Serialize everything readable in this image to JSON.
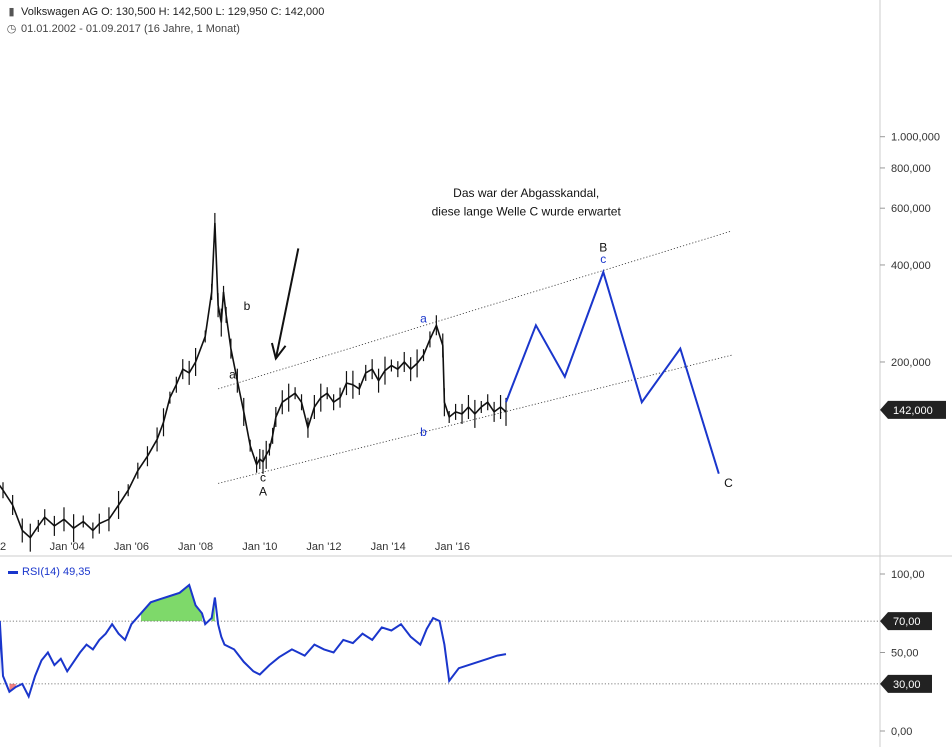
{
  "header": {
    "bars_icon": "bars-icon",
    "clock_icon": "clock-icon",
    "instrument": "Volkswagen AG",
    "open": "O: 130,500",
    "high": "H: 142,500",
    "low": "L: 129,950",
    "close": "C: 142,000",
    "range": "01.01.2002 - 01.09.2017",
    "span": "(16 Jahre, 1 Monat)"
  },
  "colors": {
    "price": "#111111",
    "projection": "#1a36cc",
    "rsi": "#1a36cc",
    "overbought_fill": "#7ed96a",
    "oversold_fill": "#f08080",
    "axis": "#cccccc",
    "badge": "#222222"
  },
  "chart_data": [
    {
      "type": "line",
      "title": "",
      "scale": "log",
      "ylim": [
        55000,
        1050000
      ],
      "x_ticks": [
        "2",
        "Jan '04",
        "Jan '06",
        "Jan '08",
        "Jan '10",
        "Jan '12",
        "Jan '14",
        "Jan '16"
      ],
      "x_tick_years": [
        2002.0,
        2004.0,
        2006.0,
        2008.0,
        2010.0,
        2012.0,
        2014.0,
        2016.0
      ],
      "y_ticks": [
        "1.000,000",
        "800,000",
        "600,000",
        "400,000",
        "200,000"
      ],
      "y_tick_values": [
        1000000,
        800000,
        600000,
        400000,
        200000
      ],
      "last_value": 142000,
      "last_label": "142,000",
      "series": [
        {
          "x": [
            2001.85,
            2002.0,
            2002.3,
            2002.6,
            2002.85,
            2003.1,
            2003.3,
            2003.6,
            2003.9,
            2004.2,
            2004.5,
            2004.8,
            2005.0,
            2005.3,
            2005.6,
            2005.9,
            2006.2,
            2006.5,
            2006.8,
            2007.0,
            2007.2,
            2007.4,
            2007.6,
            2007.8,
            2008.0,
            2008.3,
            2008.5,
            2008.6,
            2008.7,
            2008.8,
            2008.87,
            2008.95,
            2009.1,
            2009.3,
            2009.5,
            2009.7,
            2009.9,
            2010.0,
            2010.1,
            2010.2,
            2010.3,
            2010.4,
            2010.5,
            2010.7,
            2010.9,
            2011.1,
            2011.3,
            2011.5,
            2011.7,
            2011.9,
            2012.1,
            2012.3,
            2012.5,
            2012.7,
            2012.9,
            2013.1,
            2013.3,
            2013.5,
            2013.7,
            2013.9,
            2014.1,
            2014.3,
            2014.5,
            2014.7,
            2014.9,
            2015.1,
            2015.3,
            2015.5,
            2015.7,
            2015.75,
            2015.9,
            2016.1,
            2016.3,
            2016.5,
            2016.7,
            2016.9,
            2017.1,
            2017.3,
            2017.5,
            2017.67
          ],
          "y": [
            84000,
            80000,
            72000,
            60000,
            57000,
            62000,
            66000,
            62000,
            65000,
            61000,
            64000,
            60000,
            63000,
            65000,
            72000,
            80000,
            92000,
            102000,
            115000,
            130000,
            155000,
            170000,
            190000,
            185000,
            200000,
            240000,
            330000,
            540000,
            300000,
            265000,
            330000,
            280000,
            220000,
            175000,
            140000,
            110000,
            96000,
            100000,
            98000,
            103000,
            107000,
            118000,
            135000,
            150000,
            155000,
            160000,
            150000,
            125000,
            145000,
            155000,
            160000,
            150000,
            155000,
            172000,
            170000,
            165000,
            185000,
            190000,
            175000,
            188000,
            195000,
            190000,
            200000,
            190000,
            198000,
            210000,
            235000,
            260000,
            225000,
            150000,
            135000,
            140000,
            138000,
            145000,
            138000,
            145000,
            150000,
            140000,
            145000,
            140000
          ]
        },
        {
          "name": "",
          "x": [
            2017.67,
            2018.6,
            2019.5,
            2020.7,
            2021.9,
            2023.1,
            2024.3
          ],
          "y": [
            150000,
            260000,
            180000,
            380000,
            150000,
            220000,
            90000
          ]
        }
      ],
      "channel_lines": [
        {
          "x": [
            2008.7,
            2024.7
          ],
          "y": [
            165000,
            510000
          ]
        },
        {
          "x": [
            2008.7,
            2024.7
          ],
          "y": [
            84000,
            210000
          ]
        }
      ],
      "annotations": [
        {
          "text": "Das war der Abgasskandal,",
          "x": 2018.3,
          "y": 650000
        },
        {
          "text": "diese lange Welle C wurde erwartet",
          "x": 2018.3,
          "y": 570000
        },
        {
          "text": "b",
          "x": 2009.6,
          "y": 290000
        },
        {
          "text": "a",
          "x": 2009.15,
          "y": 178000
        },
        {
          "text": "c",
          "x": 2010.1,
          "y": 85000
        },
        {
          "text": "A",
          "x": 2010.1,
          "y": 77000
        },
        {
          "text": "a",
          "x": 2015.1,
          "y": 265000
        },
        {
          "text": "b",
          "x": 2015.1,
          "y": 118000
        },
        {
          "text": "B",
          "x": 2020.7,
          "y": 440000
        },
        {
          "text": "c",
          "x": 2020.7,
          "y": 405000
        },
        {
          "text": "C",
          "x": 2024.6,
          "y": 82000
        }
      ],
      "arrow": {
        "from": [
          2011.2,
          450000
        ],
        "to": [
          2010.5,
          205000
        ]
      }
    },
    {
      "type": "line",
      "title": "",
      "ylim": [
        0,
        100
      ],
      "y_ticks": [
        "100,00",
        "50,00",
        "0,00"
      ],
      "y_tick_values": [
        100,
        50,
        0
      ],
      "thresholds": [
        70,
        30
      ],
      "threshold_labels": [
        "70,00",
        "30,00"
      ],
      "series": [
        {
          "name": "RSI(14)",
          "value_label": "49,35",
          "x": [
            2001.85,
            2001.9,
            2002.0,
            2002.2,
            2002.4,
            2002.6,
            2002.8,
            2003.0,
            2003.2,
            2003.4,
            2003.6,
            2003.8,
            2004.0,
            2004.2,
            2004.4,
            2004.6,
            2004.8,
            2005.0,
            2005.2,
            2005.4,
            2005.6,
            2005.8,
            2006.0,
            2006.3,
            2006.6,
            2006.9,
            2007.2,
            2007.5,
            2007.8,
            2008.0,
            2008.2,
            2008.3,
            2008.5,
            2008.6,
            2008.7,
            2008.8,
            2008.9,
            2009.2,
            2009.5,
            2009.8,
            2010.0,
            2010.3,
            2010.6,
            2011.0,
            2011.4,
            2011.7,
            2012.0,
            2012.3,
            2012.6,
            2012.9,
            2013.2,
            2013.5,
            2013.8,
            2014.1,
            2014.4,
            2014.7,
            2015.0,
            2015.2,
            2015.4,
            2015.6,
            2015.75,
            2015.9,
            2016.2,
            2016.5,
            2016.8,
            2017.1,
            2017.4,
            2017.67
          ],
          "y": [
            0,
            70,
            35,
            25,
            28,
            30,
            22,
            35,
            45,
            50,
            42,
            46,
            38,
            44,
            50,
            55,
            52,
            58,
            62,
            68,
            62,
            58,
            68,
            75,
            82,
            84,
            86,
            88,
            93,
            80,
            75,
            68,
            72,
            85,
            68,
            60,
            55,
            52,
            44,
            38,
            36,
            42,
            47,
            52,
            48,
            55,
            52,
            50,
            58,
            56,
            62,
            58,
            66,
            64,
            68,
            60,
            55,
            65,
            72,
            70,
            55,
            32,
            40,
            42,
            44,
            46,
            48,
            49
          ]
        }
      ]
    }
  ]
}
